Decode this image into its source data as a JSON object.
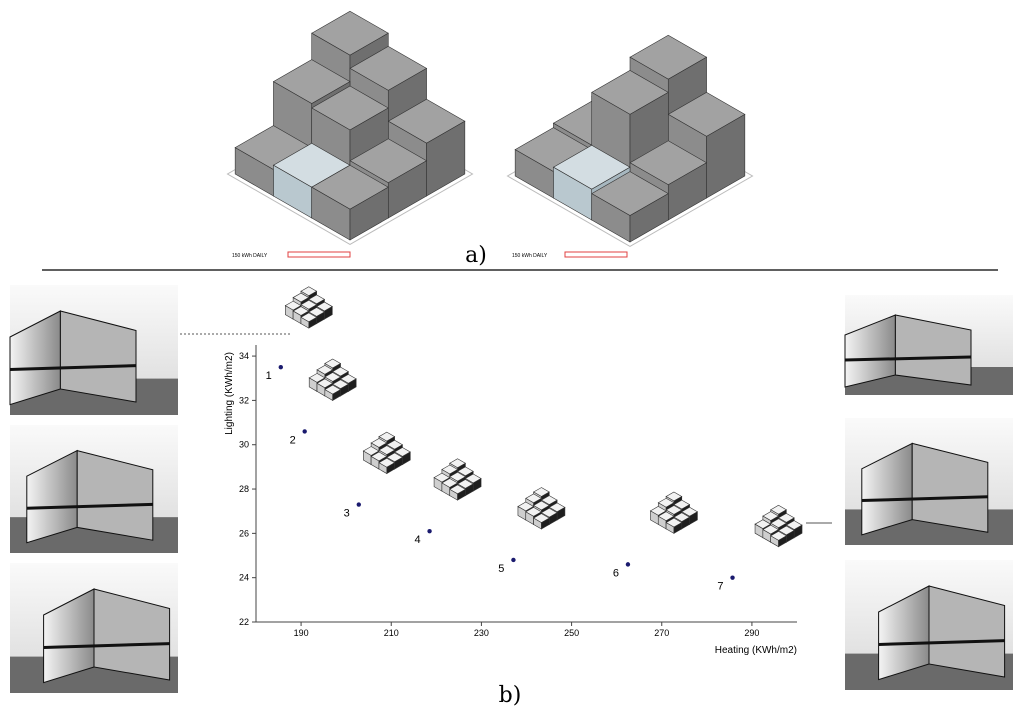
{
  "chart_data": {
    "type": "scatter",
    "x_label": "Heating (KWh/m2)",
    "y_label": "Lighting (KWh/m2)",
    "x": [
      185.5,
      190.8,
      202.8,
      218.5,
      237.1,
      262.5,
      285.7
    ],
    "values": [
      33.5,
      30.6,
      27.3,
      26.1,
      24.8,
      24.6,
      24.0
    ],
    "point_labels": [
      "1",
      "2",
      "3",
      "4",
      "5",
      "6",
      "7"
    ],
    "color": "#1a1a6e",
    "xlim": [
      180,
      300
    ],
    "ylim": [
      22,
      34.5
    ],
    "xticks": [
      190,
      210,
      230,
      250,
      270,
      290
    ],
    "yticks": [
      22,
      24,
      26,
      28,
      30,
      32,
      34
    ]
  },
  "panel_a": {
    "label": "a)",
    "legend_labels": [
      "150 kWh DAILY",
      "150 kWh DAILY"
    ]
  },
  "panel_b": {
    "label": "b)"
  }
}
